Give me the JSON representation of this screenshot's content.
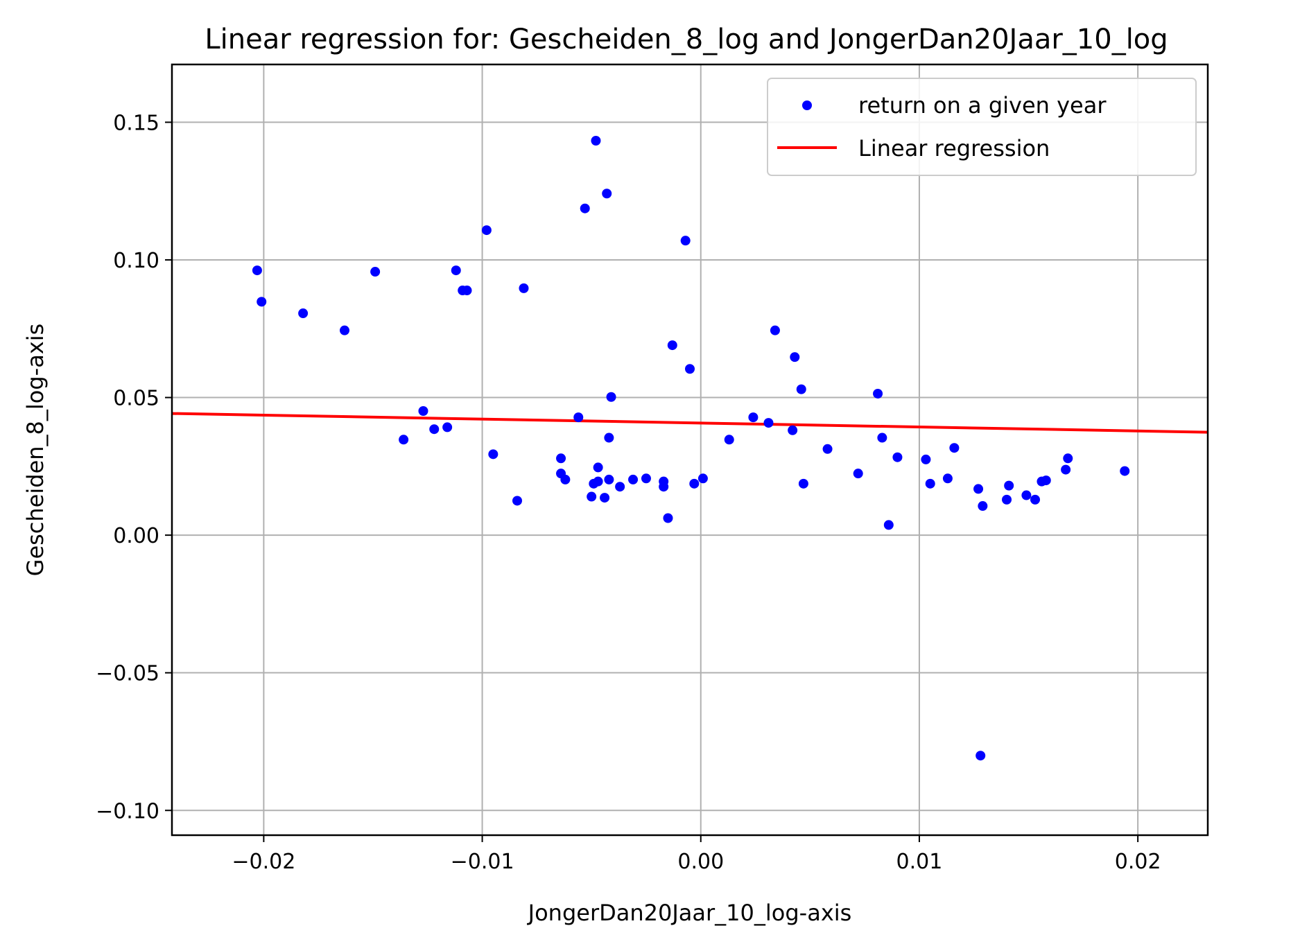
{
  "chart_data": {
    "type": "scatter",
    "title": "Linear regression for: Gescheiden_8_log and JongerDan20Jaar_10_log",
    "xlabel": "JongerDan20Jaar_10_log-axis",
    "ylabel": "Gescheiden_8_log-axis",
    "xlim": [
      -0.0242,
      0.0232
    ],
    "ylim": [
      -0.109,
      0.171
    ],
    "xticks": [
      -0.02,
      -0.01,
      0.0,
      0.01,
      0.02
    ],
    "xtick_labels": [
      "−0.02",
      "−0.01",
      "0.00",
      "0.01",
      "0.02"
    ],
    "yticks": [
      -0.1,
      -0.05,
      0.0,
      0.05,
      0.1,
      0.15
    ],
    "ytick_labels": [
      "−0.10",
      "−0.05",
      "0.00",
      "0.05",
      "0.10",
      "0.15"
    ],
    "grid": true,
    "legend_position": "top-right",
    "series": [
      {
        "name": "return on a given year",
        "kind": "scatter",
        "color": "#0000ff",
        "points": [
          [
            -0.0203,
            0.0962
          ],
          [
            -0.0201,
            0.0848
          ],
          [
            -0.0182,
            0.0806
          ],
          [
            -0.0163,
            0.0744
          ],
          [
            -0.0149,
            0.0957
          ],
          [
            -0.0136,
            0.0347
          ],
          [
            -0.0127,
            0.0451
          ],
          [
            -0.0122,
            0.0385
          ],
          [
            -0.0116,
            0.0392
          ],
          [
            -0.0112,
            0.0962
          ],
          [
            -0.0109,
            0.0889
          ],
          [
            -0.0107,
            0.0889
          ],
          [
            -0.0098,
            0.1108
          ],
          [
            -0.0095,
            0.0294
          ],
          [
            -0.0084,
            0.0125
          ],
          [
            -0.0081,
            0.0897
          ],
          [
            -0.0064,
            0.0224
          ],
          [
            -0.0064,
            0.0279
          ],
          [
            -0.0062,
            0.0202
          ],
          [
            -0.0056,
            0.0428
          ],
          [
            -0.0053,
            0.1187
          ],
          [
            -0.005,
            0.014
          ],
          [
            -0.0049,
            0.0187
          ],
          [
            -0.0048,
            0.1433
          ],
          [
            -0.0047,
            0.0246
          ],
          [
            -0.0047,
            0.0195
          ],
          [
            -0.0044,
            0.0136
          ],
          [
            -0.0043,
            0.1241
          ],
          [
            -0.0042,
            0.0202
          ],
          [
            -0.0042,
            0.0354
          ],
          [
            -0.0041,
            0.0502
          ],
          [
            -0.0037,
            0.0176
          ],
          [
            -0.0031,
            0.0202
          ],
          [
            -0.0025,
            0.0206
          ],
          [
            -0.0017,
            0.0195
          ],
          [
            -0.0017,
            0.0176
          ],
          [
            -0.0015,
            0.0062
          ],
          [
            -0.0013,
            0.069
          ],
          [
            -0.0007,
            0.107
          ],
          [
            -0.0005,
            0.0604
          ],
          [
            -0.0003,
            0.0187
          ],
          [
            0.0001,
            0.0206
          ],
          [
            0.0013,
            0.0347
          ],
          [
            0.0024,
            0.0428
          ],
          [
            0.0031,
            0.0408
          ],
          [
            0.0034,
            0.0744
          ],
          [
            0.0042,
            0.0381
          ],
          [
            0.0043,
            0.0647
          ],
          [
            0.0046,
            0.053
          ],
          [
            0.0047,
            0.0187
          ],
          [
            0.0058,
            0.0313
          ],
          [
            0.0072,
            0.0224
          ],
          [
            0.0081,
            0.0514
          ],
          [
            0.0083,
            0.0354
          ],
          [
            0.0086,
            0.0037
          ],
          [
            0.009,
            0.0283
          ],
          [
            0.0103,
            0.0275
          ],
          [
            0.0105,
            0.0187
          ],
          [
            0.0113,
            0.0206
          ],
          [
            0.0116,
            0.0317
          ],
          [
            0.0127,
            0.0168
          ],
          [
            0.0128,
            -0.0801
          ],
          [
            0.0129,
            0.0106
          ],
          [
            0.014,
            0.0129
          ],
          [
            0.0141,
            0.018
          ],
          [
            0.0149,
            0.0145
          ],
          [
            0.0153,
            0.0129
          ],
          [
            0.0156,
            0.0195
          ],
          [
            0.0158,
            0.0199
          ],
          [
            0.0167,
            0.0238
          ],
          [
            0.0168,
            0.0279
          ],
          [
            0.0194,
            0.0233
          ]
        ]
      },
      {
        "name": "Linear regression",
        "kind": "line",
        "color": "#ff0000",
        "x": [
          -0.0242,
          0.0232
        ],
        "y": [
          0.0442,
          0.0374
        ]
      }
    ]
  }
}
